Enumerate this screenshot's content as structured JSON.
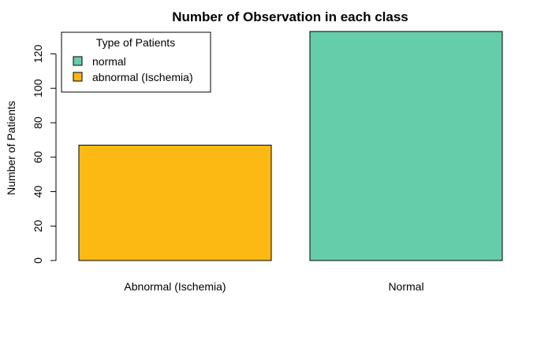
{
  "chart_data": {
    "type": "bar",
    "title": "Number of Observation in each class",
    "xlabel": "",
    "ylabel": "Number of Patients",
    "categories": [
      "Abnormal (Ischemia)",
      "Normal"
    ],
    "values": [
      67,
      133
    ],
    "colors": [
      "#FDB913",
      "#66CDAA"
    ],
    "ylim": [
      0,
      133
    ],
    "yticks": [
      "0",
      "20",
      "40",
      "60",
      "80",
      "100",
      "120"
    ],
    "grid": false,
    "legend": {
      "title": "Type of Patients",
      "placement": "top-left",
      "entries": [
        {
          "label": "normal",
          "color": "#66CDAA"
        },
        {
          "label": "abnormal (Ischemia)",
          "color": "#FDB913"
        }
      ]
    }
  }
}
